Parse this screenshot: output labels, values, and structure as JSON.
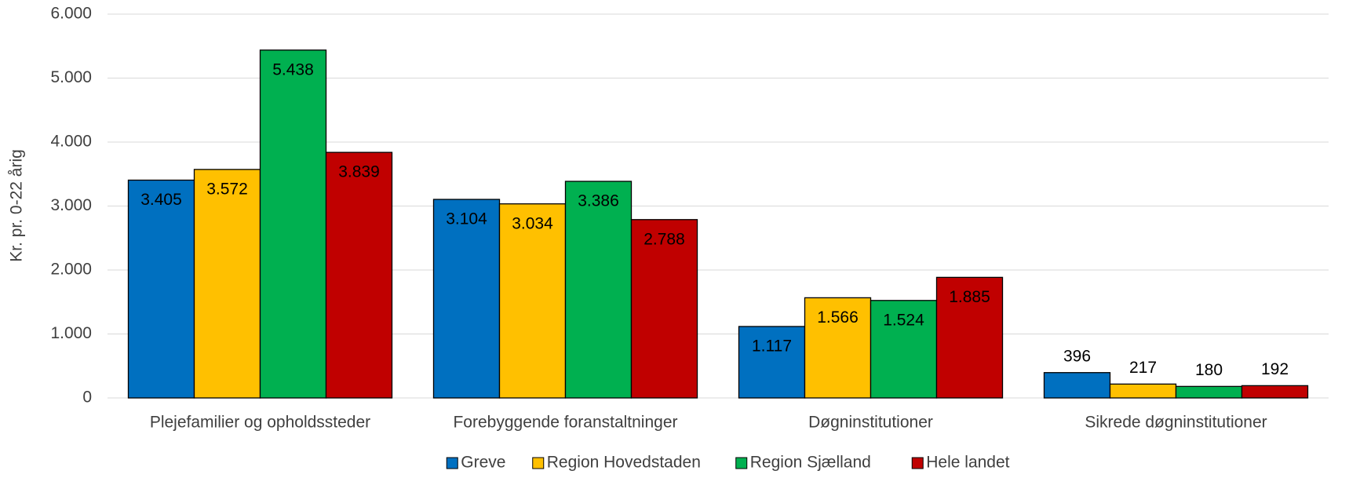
{
  "chart_data": {
    "type": "bar",
    "y_label": "Kr. pr. 0-22 årig",
    "categories": [
      "Plejefamilier og opholdssteder",
      "Forebyggende foranstaltninger",
      "Døgninstitutioner",
      "Sikrede døgninstitutioner"
    ],
    "series": [
      {
        "name": "Greve",
        "color": "#0070c0",
        "values": [
          3405,
          3104,
          1117,
          396
        ],
        "value_labels": [
          "3.405",
          "3.104",
          "1.117",
          "396"
        ]
      },
      {
        "name": "Region Hovedstaden",
        "color": "#ffc000",
        "values": [
          3572,
          3034,
          1566,
          217
        ],
        "value_labels": [
          "3.572",
          "3.034",
          "1.566",
          "217"
        ]
      },
      {
        "name": "Region Sjælland",
        "color": "#00b050",
        "values": [
          5438,
          3386,
          1524,
          180
        ],
        "value_labels": [
          "5.438",
          "3.386",
          "1.524",
          "180"
        ]
      },
      {
        "name": "Hele landet",
        "color": "#c00000",
        "values": [
          3839,
          2788,
          1885,
          192
        ],
        "value_labels": [
          "3.839",
          "2.788",
          "1.885",
          "192"
        ]
      }
    ],
    "ylim": [
      0,
      6000
    ],
    "yticks": [
      0,
      {
        "value": 1000,
        "label": "1.000"
      },
      {
        "value": 2000,
        "label": "2.000"
      },
      {
        "value": 3000,
        "label": "3.000"
      },
      {
        "value": 4000,
        "label": "4.000"
      },
      {
        "value": 5000,
        "label": "5.000"
      },
      {
        "value": 6000,
        "label": "6.000"
      }
    ],
    "grid": true,
    "legend": "bottom"
  }
}
